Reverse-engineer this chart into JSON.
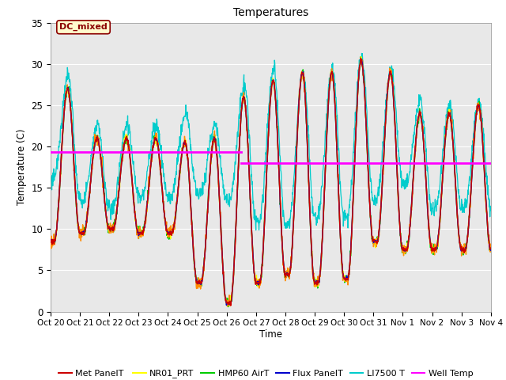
{
  "title": "Temperatures",
  "xlabel": "Time",
  "ylabel": "Temperature (C)",
  "ylim": [
    0,
    35
  ],
  "xlim": [
    0,
    15
  ],
  "xtick_labels": [
    "Oct 20",
    "Oct 21",
    "Oct 22",
    "Oct 23",
    "Oct 24",
    "Oct 25",
    "Oct 26",
    "Oct 27",
    "Oct 28",
    "Oct 29",
    "Oct 30",
    "Oct 31",
    "Nov 1",
    "Nov 2",
    "Nov 3",
    "Nov 4"
  ],
  "annotation_text": "DC_mixed",
  "annotation_color": "#8B0000",
  "annotation_bg": "#FFFACD",
  "bg_color": "#E8E8E8",
  "colors": {
    "MetPanelT": "#CC0000",
    "AM25T_PRT": "#FF8C00",
    "NR01_PRT": "#FFFF00",
    "HMP60_AirT": "#00CC00",
    "FluxPanelT": "#0000CC",
    "LI7500T": "#00CCCC",
    "WellTemp": "#FF00FF"
  },
  "well_temp_segments": [
    {
      "x": [
        0.0,
        6.5
      ],
      "y": [
        19.3,
        19.3
      ]
    },
    {
      "x": [
        6.5,
        15.0
      ],
      "y": [
        18.0,
        18.0
      ]
    }
  ],
  "daily_peaks": [
    27,
    21,
    21,
    21,
    20.5,
    21,
    26,
    28,
    29,
    29,
    30.5,
    29,
    24,
    24,
    25
  ],
  "daily_troughs": [
    8.5,
    9.5,
    10,
    9.5,
    9.5,
    3.5,
    1.0,
    3.5,
    4.5,
    3.5,
    4.0,
    8.5,
    7.5,
    7.5,
    7.5
  ],
  "li7500_peaks": [
    28.5,
    22.5,
    22.5,
    22.5,
    24.0,
    22.5,
    27.5,
    29.5,
    29.0,
    29.5,
    31.0,
    29.5,
    25.5,
    25.0,
    25.5
  ],
  "li7500_troughs": [
    16.0,
    13.5,
    12.5,
    14.0,
    14.0,
    14.5,
    13.5,
    11.0,
    10.5,
    11.5,
    11.5,
    13.5,
    15.5,
    12.5,
    12.5
  ]
}
